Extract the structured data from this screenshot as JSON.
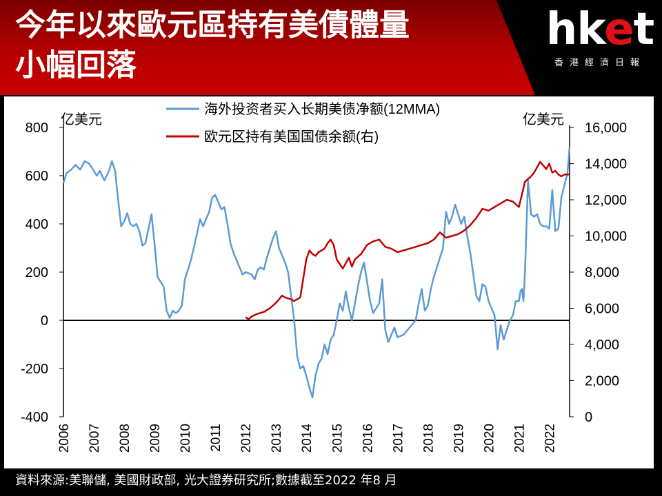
{
  "header": {
    "title_line1": "今年以來歐元區持有美債體量",
    "title_line2": "小幅回落",
    "logo_text_main": "hket",
    "logo_text_sub": "香港經濟日報",
    "accent_color": "#c00000"
  },
  "footer": {
    "source": "資料來源:美聯儲, 美國財政部, 光大證券研究所;數據截至2022 年8 月"
  },
  "chart_data": {
    "type": "line",
    "left_axis_unit": "亿美元",
    "right_axis_unit": "亿美元",
    "ylim_left": [
      -400,
      800
    ],
    "ylim_right": [
      0,
      16000
    ],
    "yticks_left": [
      "800",
      "600",
      "400",
      "200",
      "0",
      "-200",
      "-400"
    ],
    "yticks_right": [
      "16,000",
      "14,000",
      "12,000",
      "10,000",
      "8,000",
      "6,000",
      "4,000",
      "2,000",
      "0"
    ],
    "xticks": [
      "2006",
      "2007",
      "2008",
      "2009",
      "2010",
      "2011",
      "2012",
      "2013",
      "2014",
      "2015",
      "2016",
      "2017",
      "2018",
      "2019",
      "2020",
      "2021",
      "2022"
    ],
    "xlim": [
      2006,
      2022.67
    ],
    "series": [
      {
        "name": "海外投资者买入长期美债净额(12MMA)",
        "axis": "left",
        "color": "#5b9bd5",
        "x": [
          2006,
          2006.1,
          2006.25,
          2006.4,
          2006.55,
          2006.7,
          2006.85,
          2007,
          2007.1,
          2007.2,
          2007.35,
          2007.5,
          2007.6,
          2007.7,
          2007.8,
          2007.9,
          2008,
          2008.1,
          2008.2,
          2008.3,
          2008.4,
          2008.5,
          2008.6,
          2008.7,
          2008.8,
          2008.9,
          2009,
          2009.1,
          2009.2,
          2009.3,
          2009.4,
          2009.5,
          2009.6,
          2009.7,
          2009.8,
          2009.9,
          2010,
          2010.2,
          2010.4,
          2010.5,
          2010.6,
          2010.8,
          2010.9,
          2011,
          2011.1,
          2011.2,
          2011.3,
          2011.4,
          2011.5,
          2011.6,
          2011.7,
          2011.8,
          2011.9,
          2012,
          2012.1,
          2012.2,
          2012.3,
          2012.4,
          2012.5,
          2012.6,
          2012.7,
          2012.8,
          2012.9,
          2013,
          2013.1,
          2013.2,
          2013.3,
          2013.4,
          2013.5,
          2013.6,
          2013.7,
          2013.8,
          2013.9,
          2014,
          2014.1,
          2014.2,
          2014.3,
          2014.4,
          2014.5,
          2014.6,
          2014.7,
          2014.8,
          2014.9,
          2015,
          2015.1,
          2015.2,
          2015.3,
          2015.4,
          2015.5,
          2015.6,
          2015.7,
          2015.8,
          2015.9,
          2016,
          2016.1,
          2016.2,
          2016.3,
          2016.4,
          2016.5,
          2016.6,
          2016.7,
          2016.8,
          2016.9,
          2017,
          2017.2,
          2017.4,
          2017.6,
          2017.7,
          2017.8,
          2017.9,
          2018,
          2018.1,
          2018.2,
          2018.3,
          2018.4,
          2018.5,
          2018.6,
          2018.7,
          2018.8,
          2018.9,
          2019,
          2019.1,
          2019.2,
          2019.3,
          2019.4,
          2019.5,
          2019.6,
          2019.7,
          2019.8,
          2019.9,
          2020,
          2020.1,
          2020.2,
          2020.3,
          2020.4,
          2020.5,
          2020.6,
          2020.7,
          2020.8,
          2020.9,
          2021,
          2021.05,
          2021.1,
          2021.15,
          2021.2,
          2021.3,
          2021.4,
          2021.5,
          2021.6,
          2021.7,
          2021.8,
          2021.9,
          2022,
          2022.1,
          2022.2,
          2022.3,
          2022.4,
          2022.5,
          2022.6,
          2022.67
        ],
        "y": [
          570,
          610,
          625,
          645,
          625,
          660,
          650,
          620,
          600,
          620,
          580,
          620,
          660,
          620,
          500,
          390,
          410,
          445,
          400,
          390,
          400,
          370,
          310,
          320,
          380,
          440,
          320,
          180,
          160,
          140,
          40,
          10,
          40,
          30,
          40,
          60,
          170,
          250,
          360,
          420,
          390,
          450,
          510,
          520,
          490,
          460,
          470,
          400,
          320,
          280,
          250,
          220,
          190,
          200,
          195,
          190,
          170,
          210,
          220,
          210,
          260,
          300,
          340,
          370,
          300,
          270,
          240,
          200,
          100,
          0,
          -150,
          -200,
          -190,
          -230,
          -280,
          -320,
          -230,
          -180,
          -160,
          -100,
          -140,
          -80,
          -60,
          0,
          70,
          40,
          120,
          50,
          0,
          70,
          140,
          200,
          240,
          160,
          80,
          30,
          50,
          70,
          170,
          -40,
          -90,
          -60,
          -30,
          -70,
          -60,
          -30,
          0,
          70,
          130,
          40,
          60,
          130,
          180,
          220,
          260,
          300,
          450,
          400,
          430,
          480,
          440,
          400,
          430,
          350,
          280,
          190,
          100,
          80,
          150,
          140,
          80,
          50,
          20,
          -120,
          -20,
          -80,
          -40,
          0,
          20,
          80,
          80,
          120,
          130,
          80,
          200,
          580,
          440,
          430,
          440,
          400,
          390,
          390,
          380,
          540,
          370,
          380,
          510,
          560,
          610,
          720
        ]
      },
      {
        "name": "欧元区持有美国国债余额(右)",
        "axis": "right",
        "color": "#c00000",
        "x": [
          2012,
          2012.1,
          2012.2,
          2012.4,
          2012.6,
          2012.8,
          2013,
          2013.1,
          2013.2,
          2013.3,
          2013.5,
          2013.6,
          2013.8,
          2014,
          2014.1,
          2014.2,
          2014.3,
          2014.4,
          2014.5,
          2014.6,
          2014.7,
          2014.8,
          2014.9,
          2015,
          2015.2,
          2015.4,
          2015.5,
          2015.6,
          2015.8,
          2016,
          2016.2,
          2016.4,
          2016.6,
          2016.8,
          2017,
          2017.2,
          2017.4,
          2017.6,
          2017.8,
          2018,
          2018.2,
          2018.4,
          2018.6,
          2018.8,
          2019,
          2019.2,
          2019.4,
          2019.6,
          2019.8,
          2020,
          2020.2,
          2020.4,
          2020.6,
          2020.8,
          2021,
          2021.2,
          2021.4,
          2021.5,
          2021.6,
          2021.7,
          2021.8,
          2021.9,
          2022,
          2022.1,
          2022.2,
          2022.3,
          2022.4,
          2022.5,
          2022.67
        ],
        "y": [
          5500,
          5400,
          5550,
          5700,
          5800,
          6000,
          6300,
          6500,
          6700,
          6600,
          6500,
          6400,
          6600,
          8700,
          9200,
          9000,
          8900,
          9100,
          9200,
          9300,
          9600,
          9800,
          9500,
          8700,
          8200,
          8800,
          8300,
          8700,
          9000,
          9500,
          9700,
          9800,
          9400,
          9300,
          9100,
          9200,
          9300,
          9400,
          9500,
          9600,
          9800,
          10200,
          9900,
          10000,
          10100,
          10300,
          10600,
          11000,
          11500,
          11400,
          11600,
          11800,
          12000,
          11900,
          11600,
          13000,
          13300,
          13500,
          13800,
          14100,
          13900,
          13700,
          14000,
          13500,
          13600,
          13400,
          13300,
          13400,
          13400
        ]
      }
    ]
  }
}
